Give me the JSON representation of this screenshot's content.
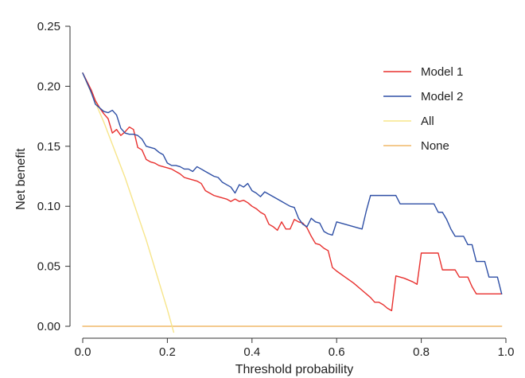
{
  "chart_data": {
    "type": "line",
    "xlabel": "Threshold probability",
    "ylabel": "Net benefit",
    "xlim": [
      0.0,
      1.0
    ],
    "ylim": [
      0.0,
      0.25
    ],
    "xticks": [
      0.0,
      0.2,
      0.4,
      0.6,
      0.8,
      1.0
    ],
    "xtick_labels": [
      "0.0",
      "0.2",
      "0.4",
      "0.6",
      "0.8",
      "1.0"
    ],
    "yticks": [
      0.0,
      0.05,
      0.1,
      0.15,
      0.2,
      0.25
    ],
    "ytick_labels": [
      "0.00",
      "0.05",
      "0.10",
      "0.15",
      "0.20",
      "0.25"
    ],
    "grid": false,
    "legend_position": "top-right",
    "series": [
      {
        "name": "Model 1",
        "color": "#e8302e",
        "points": [
          [
            0.0,
            0.211
          ],
          [
            0.01,
            0.204
          ],
          [
            0.02,
            0.197
          ],
          [
            0.03,
            0.188
          ],
          [
            0.04,
            0.182
          ],
          [
            0.05,
            0.177
          ],
          [
            0.06,
            0.173
          ],
          [
            0.07,
            0.161
          ],
          [
            0.08,
            0.164
          ],
          [
            0.09,
            0.159
          ],
          [
            0.1,
            0.162
          ],
          [
            0.11,
            0.166
          ],
          [
            0.12,
            0.164
          ],
          [
            0.13,
            0.149
          ],
          [
            0.14,
            0.147
          ],
          [
            0.15,
            0.139
          ],
          [
            0.16,
            0.137
          ],
          [
            0.17,
            0.136
          ],
          [
            0.18,
            0.134
          ],
          [
            0.19,
            0.133
          ],
          [
            0.2,
            0.132
          ],
          [
            0.21,
            0.131
          ],
          [
            0.22,
            0.129
          ],
          [
            0.23,
            0.127
          ],
          [
            0.24,
            0.124
          ],
          [
            0.25,
            0.123
          ],
          [
            0.26,
            0.122
          ],
          [
            0.27,
            0.121
          ],
          [
            0.28,
            0.119
          ],
          [
            0.29,
            0.113
          ],
          [
            0.3,
            0.111
          ],
          [
            0.31,
            0.109
          ],
          [
            0.32,
            0.108
          ],
          [
            0.33,
            0.107
          ],
          [
            0.34,
            0.106
          ],
          [
            0.35,
            0.104
          ],
          [
            0.36,
            0.106
          ],
          [
            0.37,
            0.104
          ],
          [
            0.38,
            0.105
          ],
          [
            0.39,
            0.103
          ],
          [
            0.4,
            0.1
          ],
          [
            0.41,
            0.098
          ],
          [
            0.42,
            0.095
          ],
          [
            0.43,
            0.093
          ],
          [
            0.44,
            0.085
          ],
          [
            0.45,
            0.083
          ],
          [
            0.46,
            0.08
          ],
          [
            0.47,
            0.087
          ],
          [
            0.48,
            0.081
          ],
          [
            0.49,
            0.081
          ],
          [
            0.5,
            0.089
          ],
          [
            0.51,
            0.087
          ],
          [
            0.52,
            0.086
          ],
          [
            0.53,
            0.082
          ],
          [
            0.54,
            0.075
          ],
          [
            0.55,
            0.069
          ],
          [
            0.56,
            0.068
          ],
          [
            0.57,
            0.065
          ],
          [
            0.58,
            0.063
          ],
          [
            0.59,
            0.049
          ],
          [
            0.6,
            0.046
          ],
          [
            0.62,
            0.041
          ],
          [
            0.64,
            0.036
          ],
          [
            0.66,
            0.03
          ],
          [
            0.68,
            0.024
          ],
          [
            0.69,
            0.02
          ],
          [
            0.7,
            0.02
          ],
          [
            0.71,
            0.018
          ],
          [
            0.72,
            0.015
          ],
          [
            0.73,
            0.013
          ],
          [
            0.74,
            0.042
          ],
          [
            0.76,
            0.04
          ],
          [
            0.78,
            0.037
          ],
          [
            0.79,
            0.035
          ],
          [
            0.8,
            0.061
          ],
          [
            0.81,
            0.061
          ],
          [
            0.82,
            0.061
          ],
          [
            0.83,
            0.061
          ],
          [
            0.84,
            0.061
          ],
          [
            0.85,
            0.047
          ],
          [
            0.86,
            0.047
          ],
          [
            0.87,
            0.047
          ],
          [
            0.88,
            0.047
          ],
          [
            0.89,
            0.041
          ],
          [
            0.9,
            0.041
          ],
          [
            0.91,
            0.041
          ],
          [
            0.92,
            0.033
          ],
          [
            0.93,
            0.027
          ],
          [
            0.94,
            0.027
          ],
          [
            0.95,
            0.027
          ],
          [
            0.96,
            0.027
          ],
          [
            0.97,
            0.027
          ],
          [
            0.98,
            0.027
          ],
          [
            0.99,
            0.027
          ]
        ]
      },
      {
        "name": "Model 2",
        "color": "#2e4fa5",
        "points": [
          [
            0.0,
            0.211
          ],
          [
            0.01,
            0.203
          ],
          [
            0.02,
            0.195
          ],
          [
            0.03,
            0.185
          ],
          [
            0.04,
            0.182
          ],
          [
            0.05,
            0.179
          ],
          [
            0.06,
            0.178
          ],
          [
            0.07,
            0.18
          ],
          [
            0.08,
            0.176
          ],
          [
            0.09,
            0.165
          ],
          [
            0.1,
            0.161
          ],
          [
            0.11,
            0.16
          ],
          [
            0.12,
            0.16
          ],
          [
            0.13,
            0.159
          ],
          [
            0.14,
            0.156
          ],
          [
            0.15,
            0.15
          ],
          [
            0.16,
            0.149
          ],
          [
            0.17,
            0.148
          ],
          [
            0.18,
            0.145
          ],
          [
            0.19,
            0.143
          ],
          [
            0.2,
            0.136
          ],
          [
            0.21,
            0.134
          ],
          [
            0.22,
            0.134
          ],
          [
            0.23,
            0.133
          ],
          [
            0.24,
            0.131
          ],
          [
            0.25,
            0.131
          ],
          [
            0.26,
            0.129
          ],
          [
            0.27,
            0.133
          ],
          [
            0.28,
            0.131
          ],
          [
            0.29,
            0.129
          ],
          [
            0.3,
            0.127
          ],
          [
            0.31,
            0.125
          ],
          [
            0.32,
            0.124
          ],
          [
            0.33,
            0.12
          ],
          [
            0.34,
            0.118
          ],
          [
            0.35,
            0.116
          ],
          [
            0.36,
            0.111
          ],
          [
            0.37,
            0.118
          ],
          [
            0.38,
            0.116
          ],
          [
            0.39,
            0.119
          ],
          [
            0.4,
            0.113
          ],
          [
            0.41,
            0.111
          ],
          [
            0.42,
            0.108
          ],
          [
            0.43,
            0.112
          ],
          [
            0.44,
            0.11
          ],
          [
            0.45,
            0.108
          ],
          [
            0.46,
            0.106
          ],
          [
            0.47,
            0.104
          ],
          [
            0.48,
            0.102
          ],
          [
            0.49,
            0.1
          ],
          [
            0.5,
            0.099
          ],
          [
            0.51,
            0.09
          ],
          [
            0.52,
            0.085
          ],
          [
            0.53,
            0.083
          ],
          [
            0.54,
            0.09
          ],
          [
            0.55,
            0.087
          ],
          [
            0.56,
            0.086
          ],
          [
            0.57,
            0.079
          ],
          [
            0.58,
            0.077
          ],
          [
            0.59,
            0.076
          ],
          [
            0.6,
            0.087
          ],
          [
            0.62,
            0.085
          ],
          [
            0.64,
            0.083
          ],
          [
            0.66,
            0.081
          ],
          [
            0.67,
            0.096
          ],
          [
            0.68,
            0.109
          ],
          [
            0.7,
            0.109
          ],
          [
            0.72,
            0.109
          ],
          [
            0.74,
            0.109
          ],
          [
            0.75,
            0.102
          ],
          [
            0.77,
            0.102
          ],
          [
            0.8,
            0.102
          ],
          [
            0.83,
            0.102
          ],
          [
            0.84,
            0.095
          ],
          [
            0.85,
            0.095
          ],
          [
            0.86,
            0.089
          ],
          [
            0.87,
            0.081
          ],
          [
            0.88,
            0.075
          ],
          [
            0.89,
            0.075
          ],
          [
            0.9,
            0.075
          ],
          [
            0.91,
            0.068
          ],
          [
            0.92,
            0.068
          ],
          [
            0.93,
            0.054
          ],
          [
            0.94,
            0.054
          ],
          [
            0.95,
            0.054
          ],
          [
            0.96,
            0.041
          ],
          [
            0.97,
            0.041
          ],
          [
            0.98,
            0.041
          ],
          [
            0.99,
            0.027
          ]
        ]
      },
      {
        "name": "All",
        "color": "#f7e58a",
        "points": [
          [
            0.0,
            0.211
          ],
          [
            0.05,
            0.17
          ],
          [
            0.1,
            0.124
          ],
          [
            0.15,
            0.072
          ],
          [
            0.2,
            0.014
          ],
          [
            0.215,
            -0.005
          ]
        ]
      },
      {
        "name": "None",
        "color": "#f0b968",
        "points": [
          [
            0.0,
            0.0
          ],
          [
            0.99,
            0.0
          ]
        ]
      }
    ]
  }
}
